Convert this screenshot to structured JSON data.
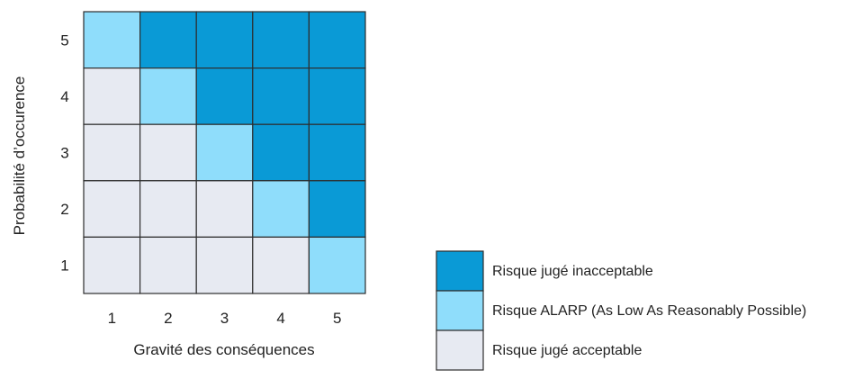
{
  "chart_data": {
    "type": "heatmap",
    "title": "",
    "xlabel": "Gravité des conséquences",
    "ylabel": "Probabilité d’occurence",
    "x_categories": [
      "1",
      "2",
      "3",
      "4",
      "5"
    ],
    "y_categories": [
      "1",
      "2",
      "3",
      "4",
      "5"
    ],
    "grid": true,
    "legend_position": "bottom-right",
    "colors": {
      "inacceptable": "#0a9ad6",
      "alarp": "#8fddfb",
      "acceptable": "#e7eaf2",
      "grid": "#2d2d2d"
    },
    "legend": [
      {
        "key": "inacceptable",
        "label": "Risque jugé inacceptable"
      },
      {
        "key": "alarp",
        "label": "Risque ALARP (As Low As Reasonably Possible)"
      },
      {
        "key": "acceptable",
        "label": "Risque jugé acceptable"
      }
    ],
    "cells": [
      {
        "x": "1",
        "y": "5",
        "level": "alarp"
      },
      {
        "x": "2",
        "y": "5",
        "level": "inacceptable"
      },
      {
        "x": "3",
        "y": "5",
        "level": "inacceptable"
      },
      {
        "x": "4",
        "y": "5",
        "level": "inacceptable"
      },
      {
        "x": "5",
        "y": "5",
        "level": "inacceptable"
      },
      {
        "x": "1",
        "y": "4",
        "level": "acceptable"
      },
      {
        "x": "2",
        "y": "4",
        "level": "alarp"
      },
      {
        "x": "3",
        "y": "4",
        "level": "inacceptable"
      },
      {
        "x": "4",
        "y": "4",
        "level": "inacceptable"
      },
      {
        "x": "5",
        "y": "4",
        "level": "inacceptable"
      },
      {
        "x": "1",
        "y": "3",
        "level": "acceptable"
      },
      {
        "x": "2",
        "y": "3",
        "level": "acceptable"
      },
      {
        "x": "3",
        "y": "3",
        "level": "alarp"
      },
      {
        "x": "4",
        "y": "3",
        "level": "inacceptable"
      },
      {
        "x": "5",
        "y": "3",
        "level": "inacceptable"
      },
      {
        "x": "1",
        "y": "2",
        "level": "acceptable"
      },
      {
        "x": "2",
        "y": "2",
        "level": "acceptable"
      },
      {
        "x": "3",
        "y": "2",
        "level": "acceptable"
      },
      {
        "x": "4",
        "y": "2",
        "level": "alarp"
      },
      {
        "x": "5",
        "y": "2",
        "level": "inacceptable"
      },
      {
        "x": "1",
        "y": "1",
        "level": "acceptable"
      },
      {
        "x": "2",
        "y": "1",
        "level": "acceptable"
      },
      {
        "x": "3",
        "y": "1",
        "level": "acceptable"
      },
      {
        "x": "4",
        "y": "1",
        "level": "acceptable"
      },
      {
        "x": "5",
        "y": "1",
        "level": "alarp"
      }
    ]
  }
}
